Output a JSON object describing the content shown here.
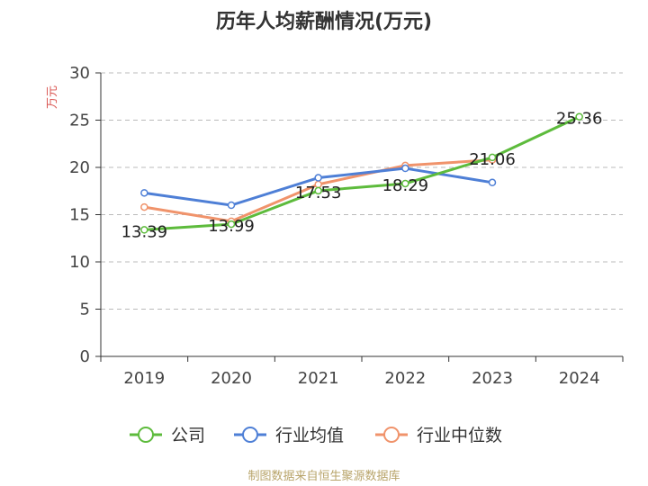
{
  "title": "历年人均薪酬情况(万元)",
  "footer": "制图数据来自恒生聚源数据库",
  "chart_data": {
    "type": "line",
    "title": "历年人均薪酬情况(万元)",
    "ylabel": "万元",
    "xlabel": "",
    "ylim": [
      0,
      30
    ],
    "yticks": [
      0,
      5,
      10,
      15,
      20,
      25,
      30
    ],
    "grid": true,
    "legend_position": "bottom",
    "categories": [
      "2019",
      "2020",
      "2021",
      "2022",
      "2023",
      "2024"
    ],
    "series": [
      {
        "name": "公司",
        "color": "#5dbb3c",
        "values": [
          13.39,
          13.99,
          17.53,
          18.29,
          21.06,
          25.36
        ],
        "labels": [
          "13.39",
          "13.99",
          "17.53",
          "18.29",
          "21.06",
          "25.36"
        ]
      },
      {
        "name": "行业均值",
        "color": "#4e7fd6",
        "values": [
          17.3,
          16.0,
          18.9,
          19.9,
          18.4,
          null
        ]
      },
      {
        "name": "行业中位数",
        "color": "#f0936b",
        "values": [
          15.8,
          14.3,
          18.2,
          20.2,
          20.8,
          null
        ]
      }
    ]
  }
}
